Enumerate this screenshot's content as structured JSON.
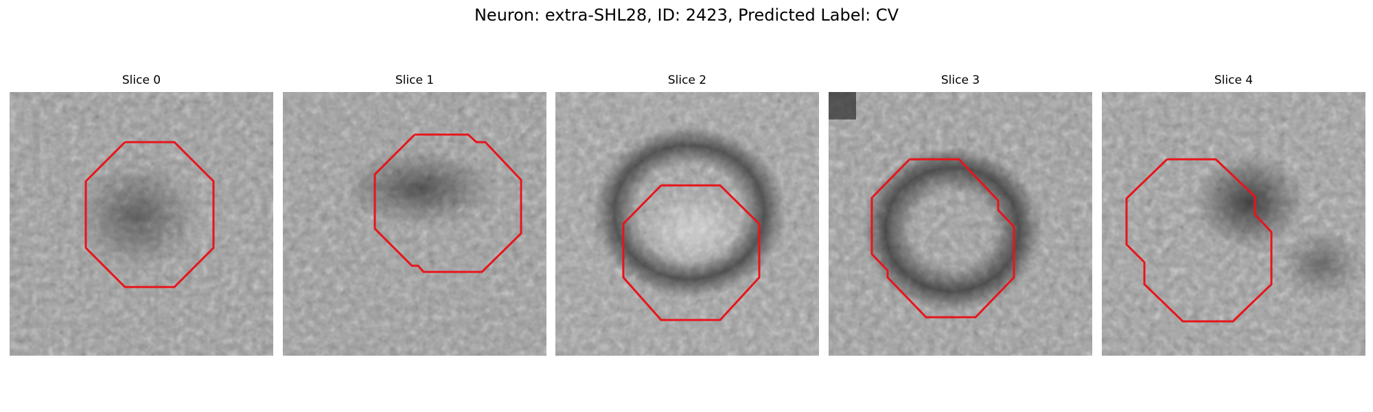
{
  "figure": {
    "title": "Neuron: extra-SHL28, ID: 2423, Predicted Label: CV"
  },
  "slices": [
    {
      "title": "Slice 0"
    },
    {
      "title": "Slice 1"
    },
    {
      "title": "Slice 2"
    },
    {
      "title": "Slice 3"
    },
    {
      "title": "Slice 4"
    }
  ],
  "colors": {
    "contour": "#e8141b",
    "background": "#ffffff"
  }
}
